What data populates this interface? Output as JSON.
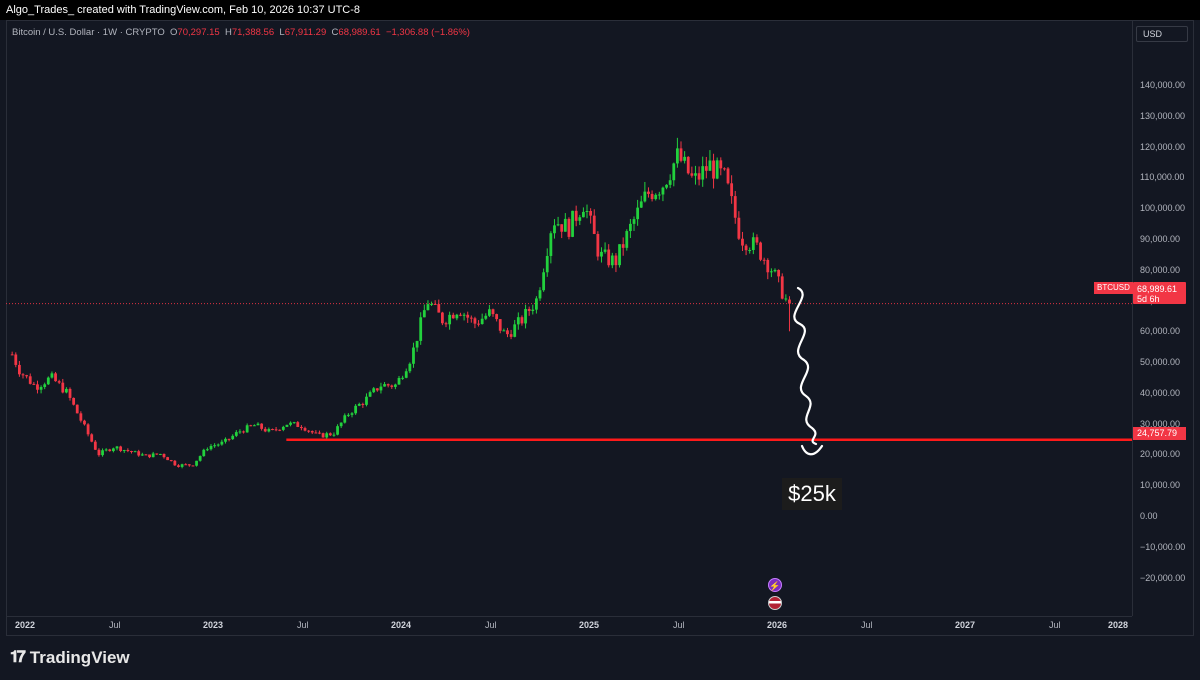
{
  "caption": "Algo_Trades_ created with TradingView.com, Feb 10, 2026 10:37 UTC-8",
  "legend": {
    "symbol": "Bitcoin / U.S. Dollar · 1W · CRYPTO",
    "o_label": "O",
    "o_value": "70,297.15",
    "h_label": "H",
    "h_value": "71,388.56",
    "l_label": "L",
    "l_value": "67,911.29",
    "c_label": "C",
    "c_value": "68,989.61",
    "change": "−1,306.88 (−1.86%)"
  },
  "currency": "USD",
  "last_price": {
    "symbol": "BTCUSD",
    "value": "68,989.61",
    "countdown": "5d 6h"
  },
  "level_line": {
    "value": "24,757.79"
  },
  "annotation": "$25k",
  "watermark": "TradingView",
  "colors": {
    "up": "#089981",
    "up_bright": "#22d13d",
    "down": "#f23645",
    "bg": "#131722",
    "line": "#ff1a1a"
  },
  "icons": {
    "event_1": "lightning-icon",
    "event_2": "us-flag-icon"
  },
  "chart_data": {
    "type": "candlestick",
    "title": "",
    "xlabel": "",
    "ylabel": "",
    "ylim": [
      -28000,
      147000
    ],
    "xlim": [
      "2022-01",
      "2028-01"
    ],
    "y_ticks": [
      "140,000.00",
      "130,000.00",
      "120,000.00",
      "110,000.00",
      "100,000.00",
      "90,000.00",
      "80,000.00",
      "70,000.00",
      "60,000.00",
      "50,000.00",
      "40,000.00",
      "30,000.00",
      "20,000.00",
      "10,000.00",
      "0.00",
      "−10,000.00",
      "−20,000.00"
    ],
    "y_tick_values": [
      140000,
      130000,
      120000,
      110000,
      100000,
      90000,
      80000,
      70000,
      60000,
      50000,
      40000,
      30000,
      20000,
      10000,
      0,
      -10000,
      -20000
    ],
    "x_ticks": [
      "2022",
      "Jul",
      "2023",
      "Jul",
      "2024",
      "Jul",
      "2025",
      "Jul",
      "2026",
      "Jul",
      "2027",
      "Jul",
      "2028"
    ],
    "x_tick_dates": [
      "2022-01",
      "2022-07",
      "2023-01",
      "2023-07",
      "2024-01",
      "2024-07",
      "2025-01",
      "2025-07",
      "2026-01",
      "2026-07",
      "2027-01",
      "2027-07",
      "2028-01"
    ],
    "x_tick_is_year": [
      true,
      false,
      true,
      false,
      true,
      false,
      true,
      false,
      true,
      false,
      true,
      false,
      true
    ],
    "price_path": [
      [
        "2021-12",
        58000
      ],
      [
        "2022-01",
        47000
      ],
      [
        "2022-02",
        42000
      ],
      [
        "2022-03",
        45000
      ],
      [
        "2022-04",
        40000
      ],
      [
        "2022-05",
        30000
      ],
      [
        "2022-06",
        20000
      ],
      [
        "2022-07",
        22500
      ],
      [
        "2022-08",
        21000
      ],
      [
        "2022-09",
        19500
      ],
      [
        "2022-10",
        20200
      ],
      [
        "2022-11",
        16500
      ],
      [
        "2022-12",
        16600
      ],
      [
        "2023-01",
        22500
      ],
      [
        "2023-02",
        23800
      ],
      [
        "2023-03",
        27500
      ],
      [
        "2023-04",
        29500
      ],
      [
        "2023-05",
        27200
      ],
      [
        "2023-06",
        30000
      ],
      [
        "2023-07",
        29300
      ],
      [
        "2023-08",
        26000
      ],
      [
        "2023-09",
        26800
      ],
      [
        "2023-10",
        33500
      ],
      [
        "2023-11",
        37500
      ],
      [
        "2023-12",
        42500
      ],
      [
        "2024-01",
        42500
      ],
      [
        "2024-02",
        52000
      ],
      [
        "2024-03",
        70000
      ],
      [
        "2024-04",
        63500
      ],
      [
        "2024-05",
        67500
      ],
      [
        "2024-06",
        62500
      ],
      [
        "2024-07",
        66000
      ],
      [
        "2024-08",
        58500
      ],
      [
        "2024-09",
        63500
      ],
      [
        "2024-10",
        70500
      ],
      [
        "2024-11",
        96500
      ],
      [
        "2024-12",
        93500
      ],
      [
        "2025-01",
        102000
      ],
      [
        "2025-02",
        84500
      ],
      [
        "2025-03",
        82500
      ],
      [
        "2025-04",
        94000
      ],
      [
        "2025-05",
        104500
      ],
      [
        "2025-06",
        107500
      ],
      [
        "2025-07",
        117000
      ],
      [
        "2025-08",
        108500
      ],
      [
        "2025-09",
        114000
      ],
      [
        "2025-10",
        109500
      ],
      [
        "2025-11",
        90500
      ],
      [
        "2025-12",
        87500
      ],
      [
        "2026-01",
        80000
      ],
      [
        "2026-02",
        68989.61
      ]
    ],
    "level_line": {
      "value": 24757.79,
      "from": "2023-06"
    },
    "last_close": 68989.61
  }
}
